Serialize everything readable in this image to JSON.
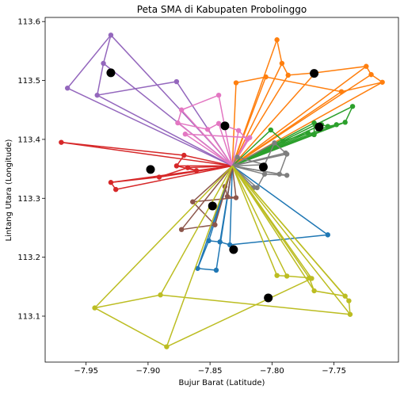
{
  "chart_data": {
    "type": "scatter",
    "title": "Peta SMA di Kabupaten Probolinggo",
    "xlabel": "Bujur Barat (Latitude)",
    "ylabel": "Lintang Utara (Longitude)",
    "xlim": [
      -7.983,
      -7.698
    ],
    "ylim": [
      113.022,
      113.607
    ],
    "xticks": [
      -7.95,
      -7.9,
      -7.85,
      -7.8,
      -7.75
    ],
    "xtick_labels": [
      "−7.95",
      "−7.90",
      "−7.85",
      "−7.80",
      "−7.75"
    ],
    "yticks": [
      113.1,
      113.2,
      113.3,
      113.4,
      113.5,
      113.6
    ],
    "ytick_labels": [
      "113.1",
      "113.2",
      "113.3",
      "113.4",
      "113.5",
      "113.6"
    ],
    "grid": false,
    "hub": [
      -7.832,
      113.355
    ],
    "series": [
      {
        "color": "#1f77b4",
        "points": [
          [
            -7.755,
            113.238
          ],
          [
            -7.834,
            113.221
          ],
          [
            -7.842,
            113.226
          ],
          [
            -7.851,
            113.228
          ],
          [
            -7.86,
            113.181
          ],
          [
            -7.845,
            113.178
          ]
        ]
      },
      {
        "color": "#ff7f0e",
        "points": [
          [
            -7.796,
            113.569
          ],
          [
            -7.792,
            113.529
          ],
          [
            -7.787,
            113.509
          ],
          [
            -7.765,
            113.513
          ],
          [
            -7.724,
            113.524
          ],
          [
            -7.72,
            113.51
          ],
          [
            -7.711,
            113.497
          ],
          [
            -7.744,
            113.481
          ],
          [
            -7.805,
            113.506
          ],
          [
            -7.829,
            113.496
          ]
        ]
      },
      {
        "color": "#2ca02c",
        "points": [
          [
            -7.735,
            113.456
          ],
          [
            -7.741,
            113.429
          ],
          [
            -7.748,
            113.425
          ],
          [
            -7.755,
            113.422
          ],
          [
            -7.76,
            113.425
          ],
          [
            -7.766,
            113.428
          ],
          [
            -7.766,
            113.408
          ],
          [
            -7.771,
            113.411
          ],
          [
            -7.791,
            113.397
          ],
          [
            -7.801,
            113.416
          ]
        ]
      },
      {
        "color": "#d62728",
        "points": [
          [
            -7.97,
            113.395
          ],
          [
            -7.871,
            113.373
          ],
          [
            -7.877,
            113.355
          ],
          [
            -7.861,
            113.347
          ],
          [
            -7.868,
            113.352
          ],
          [
            -7.891,
            113.336
          ],
          [
            -7.93,
            113.327
          ],
          [
            -7.926,
            113.315
          ]
        ]
      },
      {
        "color": "#9467bd",
        "points": [
          [
            -7.965,
            113.487
          ],
          [
            -7.93,
            113.577
          ],
          [
            -7.936,
            113.529
          ],
          [
            -7.941,
            113.475
          ],
          [
            -7.877,
            113.498
          ]
        ]
      },
      {
        "color": "#8c564b",
        "points": [
          [
            -7.838,
            113.32
          ],
          [
            -7.836,
            113.303
          ],
          [
            -7.829,
            113.301
          ],
          [
            -7.864,
            113.294
          ],
          [
            -7.846,
            113.255
          ],
          [
            -7.873,
            113.247
          ]
        ]
      },
      {
        "color": "#e377c2",
        "points": [
          [
            -7.843,
            113.475
          ],
          [
            -7.873,
            113.45
          ],
          [
            -7.876,
            113.428
          ],
          [
            -7.852,
            113.417
          ],
          [
            -7.843,
            113.427
          ],
          [
            -7.827,
            113.415
          ],
          [
            -7.82,
            113.4
          ],
          [
            -7.818,
            113.403
          ],
          [
            -7.87,
            113.409
          ]
        ]
      },
      {
        "color": "#7f7f7f",
        "points": [
          [
            -7.828,
            113.37
          ],
          [
            -7.806,
            113.357
          ],
          [
            -7.798,
            113.394
          ],
          [
            -7.789,
            113.377
          ],
          [
            -7.788,
            113.375
          ],
          [
            -7.794,
            113.341
          ],
          [
            -7.788,
            113.339
          ],
          [
            -7.806,
            113.341
          ],
          [
            -7.812,
            113.318
          ],
          [
            -7.815,
            113.318
          ]
        ]
      },
      {
        "color": "#bcbd22",
        "points": [
          [
            -7.796,
            113.169
          ],
          [
            -7.788,
            113.168
          ],
          [
            -7.77,
            113.165
          ],
          [
            -7.766,
            113.143
          ],
          [
            -7.741,
            113.134
          ],
          [
            -7.738,
            113.126
          ],
          [
            -7.737,
            113.103
          ],
          [
            -7.89,
            113.136
          ],
          [
            -7.943,
            113.114
          ],
          [
            -7.885,
            113.048
          ],
          [
            -7.768,
            113.164
          ]
        ]
      }
    ],
    "centroids": [
      [
        -7.93,
        113.513
      ],
      [
        -7.898,
        113.349
      ],
      [
        -7.848,
        113.287
      ],
      [
        -7.838,
        113.423
      ],
      [
        -7.831,
        113.213
      ],
      [
        -7.807,
        113.353
      ],
      [
        -7.803,
        113.131
      ],
      [
        -7.766,
        113.512
      ],
      [
        -7.762,
        113.421
      ]
    ]
  }
}
